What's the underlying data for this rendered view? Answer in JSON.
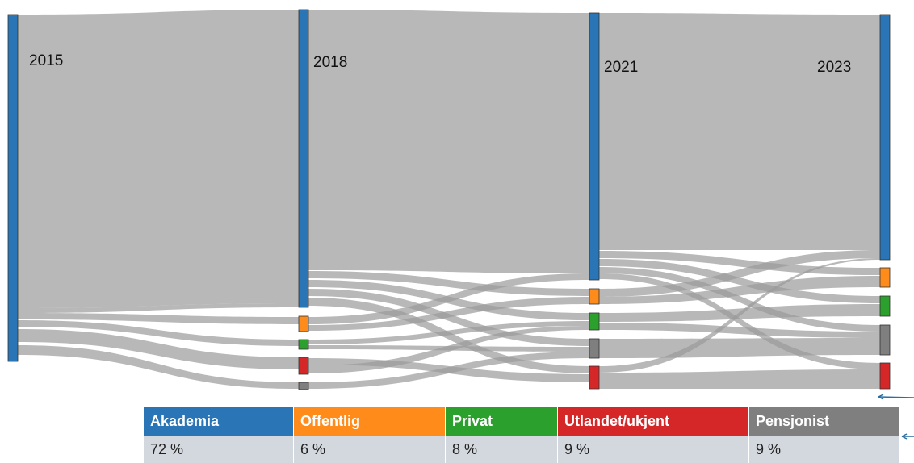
{
  "years": [
    "2015",
    "2018",
    "2021",
    "2023"
  ],
  "table": {
    "headers": [
      "Akademia",
      "Offentlig",
      "Privat",
      "Utlandet/ukjent",
      "Pensjonist"
    ],
    "values": [
      "72 %",
      "6 %",
      "8 %",
      "9 %",
      "9 %"
    ],
    "colors": [
      "#2a75b5",
      "#ff8c1a",
      "#2ca02c",
      "#d62728",
      "#7f7f7f"
    ]
  }
}
